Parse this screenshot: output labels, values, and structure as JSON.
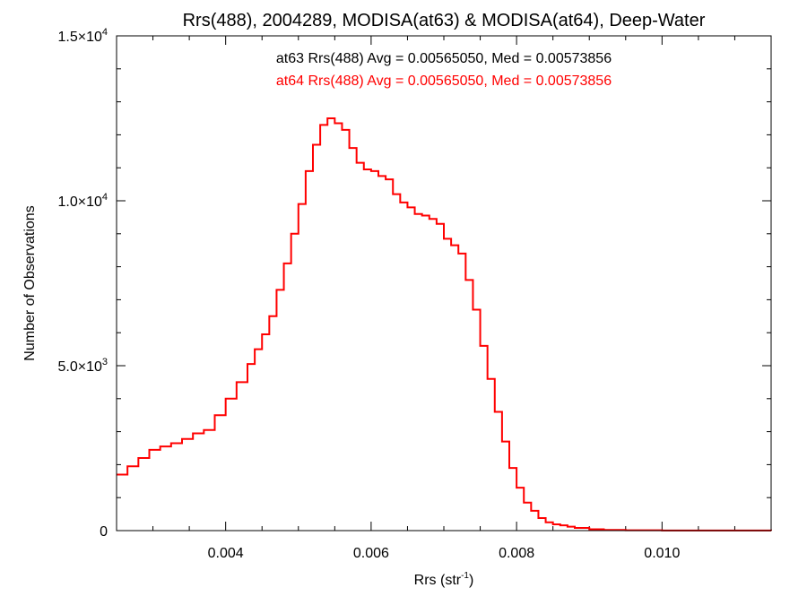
{
  "chart_data": {
    "type": "line",
    "title": "Rrs(488), 2004289, MODISA(at63) & MODISA(at64), Deep-Water",
    "xlabel": "Rrs (str",
    "xlabel_sup": "-1",
    "xlabel_close": ")",
    "ylabel": "Number of Observations",
    "xlim": [
      0.0025,
      0.0115
    ],
    "ylim": [
      0,
      15000
    ],
    "grid": false,
    "x_ticks": [
      {
        "value": 0.004,
        "label": "0.004"
      },
      {
        "value": 0.006,
        "label": "0.006"
      },
      {
        "value": 0.008,
        "label": "0.008"
      },
      {
        "value": 0.01,
        "label": "0.010"
      }
    ],
    "y_ticks": [
      {
        "value": 0,
        "label": "0",
        "exp": ""
      },
      {
        "value": 5000,
        "label": "5.0×10",
        "exp": "3"
      },
      {
        "value": 10000,
        "label": "1.0×10",
        "exp": "4"
      },
      {
        "value": 15000,
        "label": "1.5×10",
        "exp": "4"
      }
    ],
    "annotations": [
      {
        "text": "at63 Rrs(488) Avg = 0.00565050, Med = 0.00573856",
        "color": "#000000"
      },
      {
        "text": "at64 Rrs(488) Avg = 0.00565050, Med = 0.00573856",
        "color": "#ff0000"
      }
    ],
    "series": [
      {
        "color": "#ff0000",
        "step": true,
        "x": [
          0.0025,
          0.00265,
          0.0028,
          0.00295,
          0.0031,
          0.00325,
          0.0034,
          0.00355,
          0.0037,
          0.00385,
          0.004,
          0.00415,
          0.0043,
          0.0044,
          0.0045,
          0.0046,
          0.0047,
          0.0048,
          0.0049,
          0.005,
          0.0051,
          0.0052,
          0.0053,
          0.0054,
          0.0055,
          0.0056,
          0.0057,
          0.0058,
          0.0059,
          0.006,
          0.0061,
          0.0062,
          0.0063,
          0.0064,
          0.0065,
          0.0066,
          0.0067,
          0.0068,
          0.0069,
          0.007,
          0.0071,
          0.0072,
          0.0073,
          0.0074,
          0.0075,
          0.0076,
          0.0077,
          0.0078,
          0.0079,
          0.008,
          0.0081,
          0.0082,
          0.0083,
          0.0084,
          0.0085,
          0.0086,
          0.0087,
          0.0088,
          0.009,
          0.0092,
          0.0095,
          0.01,
          0.0105,
          0.011,
          0.0115
        ],
        "y": [
          1700,
          1950,
          2200,
          2450,
          2550,
          2650,
          2780,
          2950,
          3050,
          3500,
          4000,
          4500,
          5050,
          5500,
          5950,
          6500,
          7300,
          8100,
          9000,
          9900,
          10900,
          11700,
          12300,
          12500,
          12350,
          12150,
          11600,
          11150,
          10950,
          10900,
          10750,
          10650,
          10200,
          9950,
          9800,
          9600,
          9550,
          9450,
          9300,
          8850,
          8650,
          8400,
          7600,
          6700,
          5600,
          4600,
          3600,
          2700,
          1900,
          1300,
          850,
          600,
          380,
          250,
          190,
          160,
          120,
          80,
          40,
          20,
          10,
          5,
          3,
          2,
          0
        ]
      }
    ]
  }
}
